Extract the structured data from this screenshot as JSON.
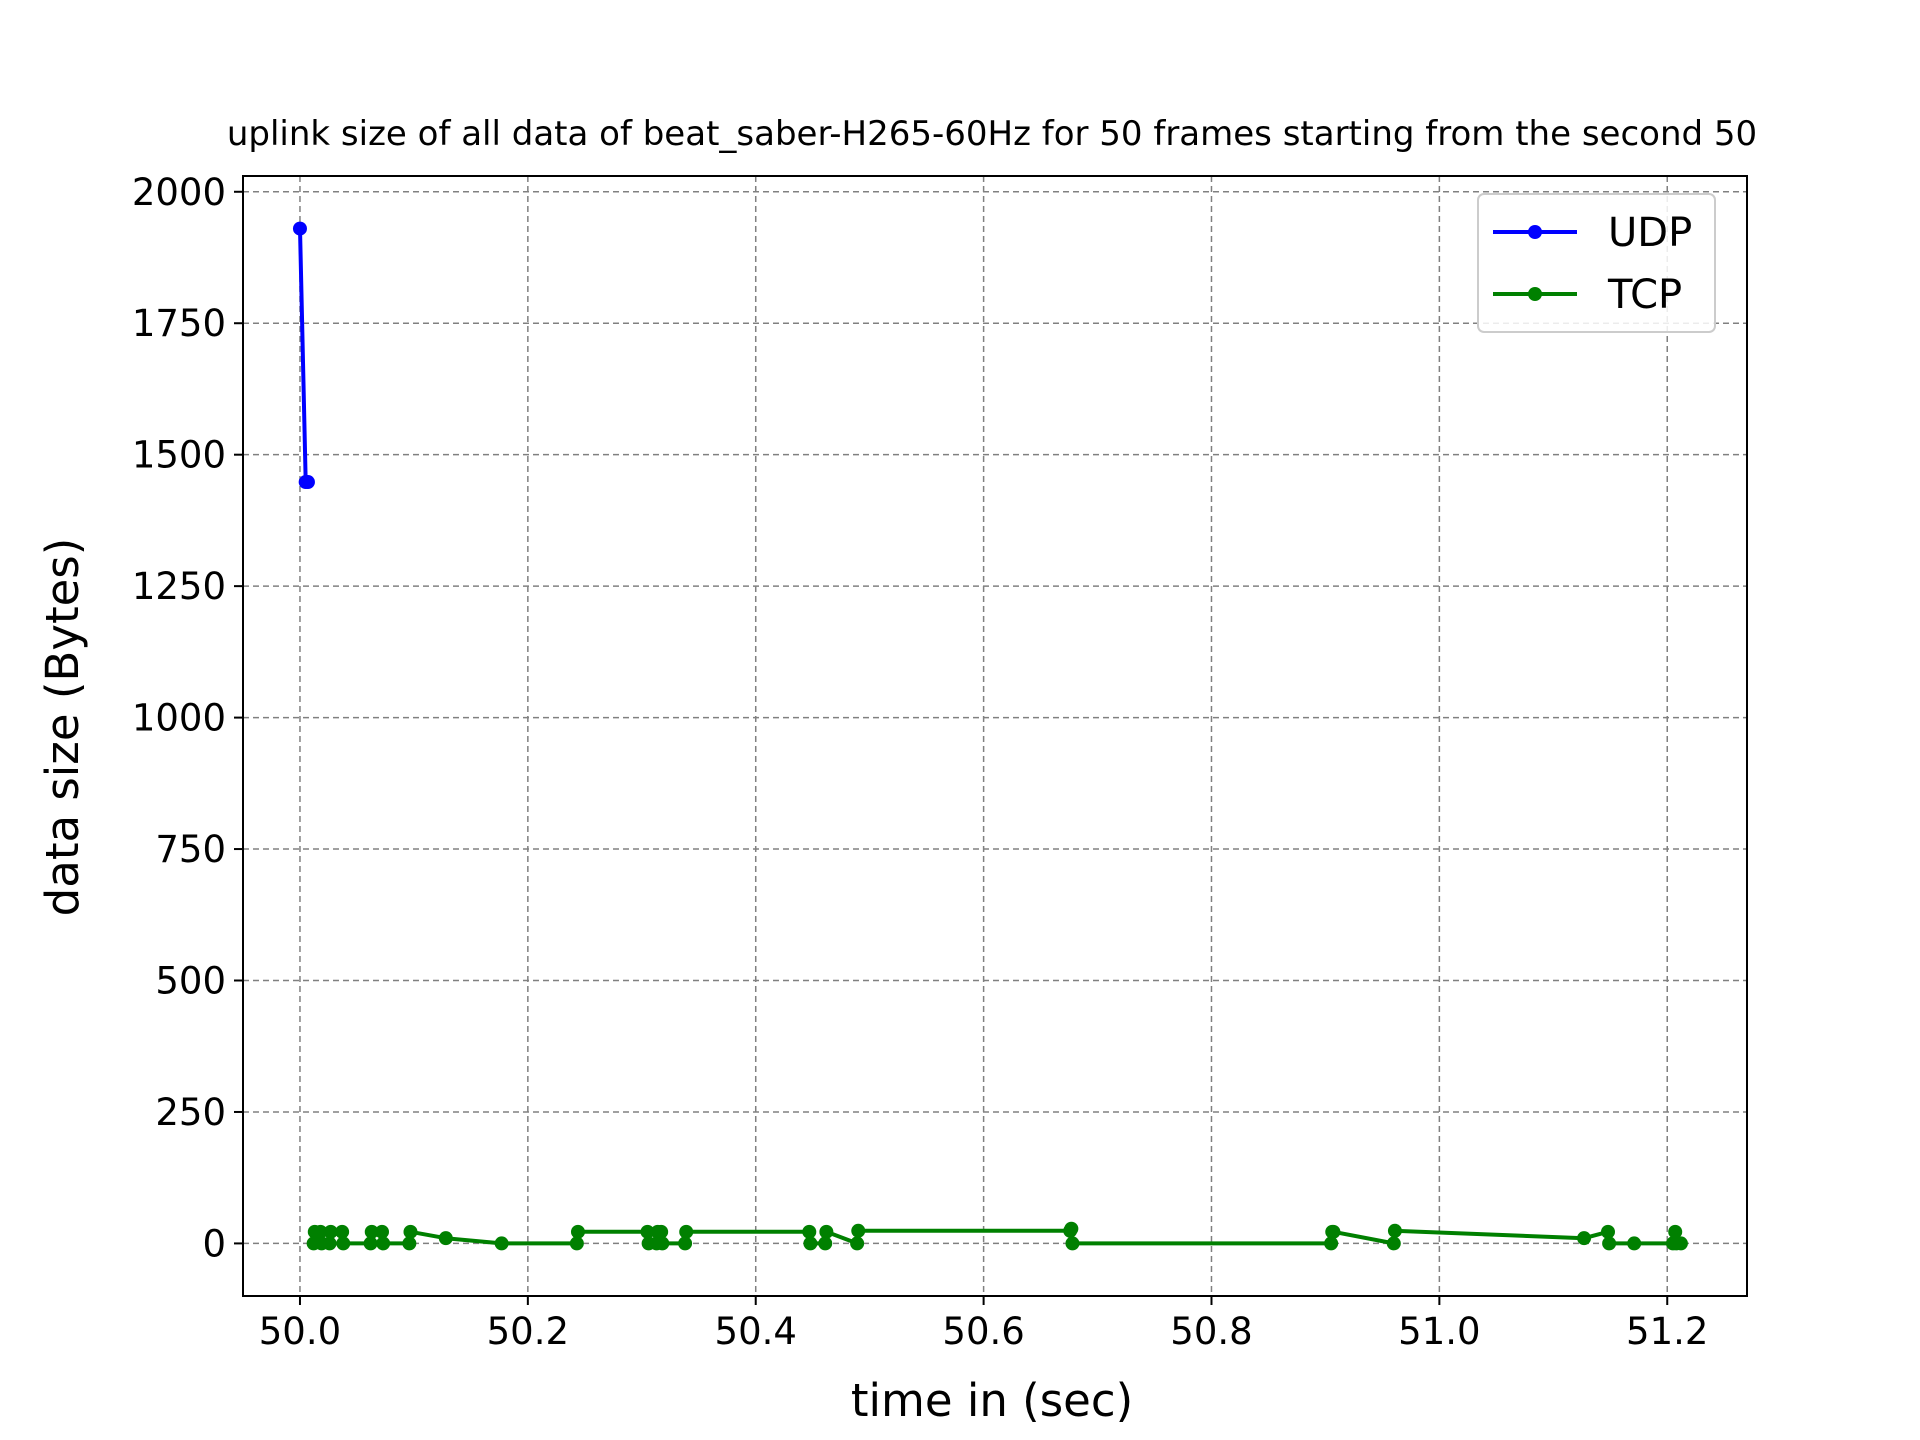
{
  "chart_data": {
    "type": "line",
    "title": "uplink size of all data of beat_saber-H265-60Hz for 50 frames starting from the second 50",
    "xlabel": "time in (sec)",
    "ylabel": "data size (Bytes)",
    "xlim": [
      49.95,
      51.27
    ],
    "ylim": [
      -100,
      2030
    ],
    "xticks": [
      50.0,
      50.2,
      50.4,
      50.6,
      50.8,
      51.0,
      51.2
    ],
    "xtick_labels": [
      "50.0",
      "50.2",
      "50.4",
      "50.6",
      "50.8",
      "51.0",
      "51.2"
    ],
    "yticks": [
      0,
      250,
      500,
      750,
      1000,
      1250,
      1500,
      1750,
      2000
    ],
    "ytick_labels": [
      "0",
      "250",
      "500",
      "750",
      "1000",
      "1250",
      "1500",
      "1750",
      "2000"
    ],
    "grid": true,
    "legend_position": "top-right",
    "series": [
      {
        "name": "UDP",
        "color": "#0000ff",
        "x": [
          50.0,
          50.005,
          50.007
        ],
        "y": [
          1930,
          1448,
          1448
        ]
      },
      {
        "name": "TCP",
        "color": "#008000",
        "x": [
          50.012,
          50.013,
          50.018,
          50.019,
          50.026,
          50.027,
          50.037,
          50.038,
          50.062,
          50.063,
          50.072,
          50.073,
          50.096,
          50.097,
          50.128,
          50.177,
          50.243,
          50.244,
          50.305,
          50.306,
          50.313,
          50.314,
          50.317,
          50.318,
          50.338,
          50.339,
          50.447,
          50.448,
          50.461,
          50.462,
          50.489,
          50.49,
          50.676,
          50.677,
          50.678,
          50.905,
          50.906,
          50.907,
          50.96,
          50.961,
          51.127,
          51.148,
          51.149,
          51.171,
          51.205,
          51.207,
          51.208,
          51.212
        ],
        "y": [
          0,
          22,
          22,
          0,
          0,
          22,
          22,
          0,
          0,
          22,
          22,
          0,
          0,
          22,
          10,
          0,
          0,
          22,
          22,
          0,
          0,
          22,
          22,
          0,
          0,
          22,
          22,
          0,
          0,
          22,
          0,
          24,
          24,
          28,
          0,
          0,
          22,
          22,
          0,
          24,
          10,
          22,
          0,
          0,
          0,
          22,
          0,
          0
        ]
      }
    ]
  }
}
